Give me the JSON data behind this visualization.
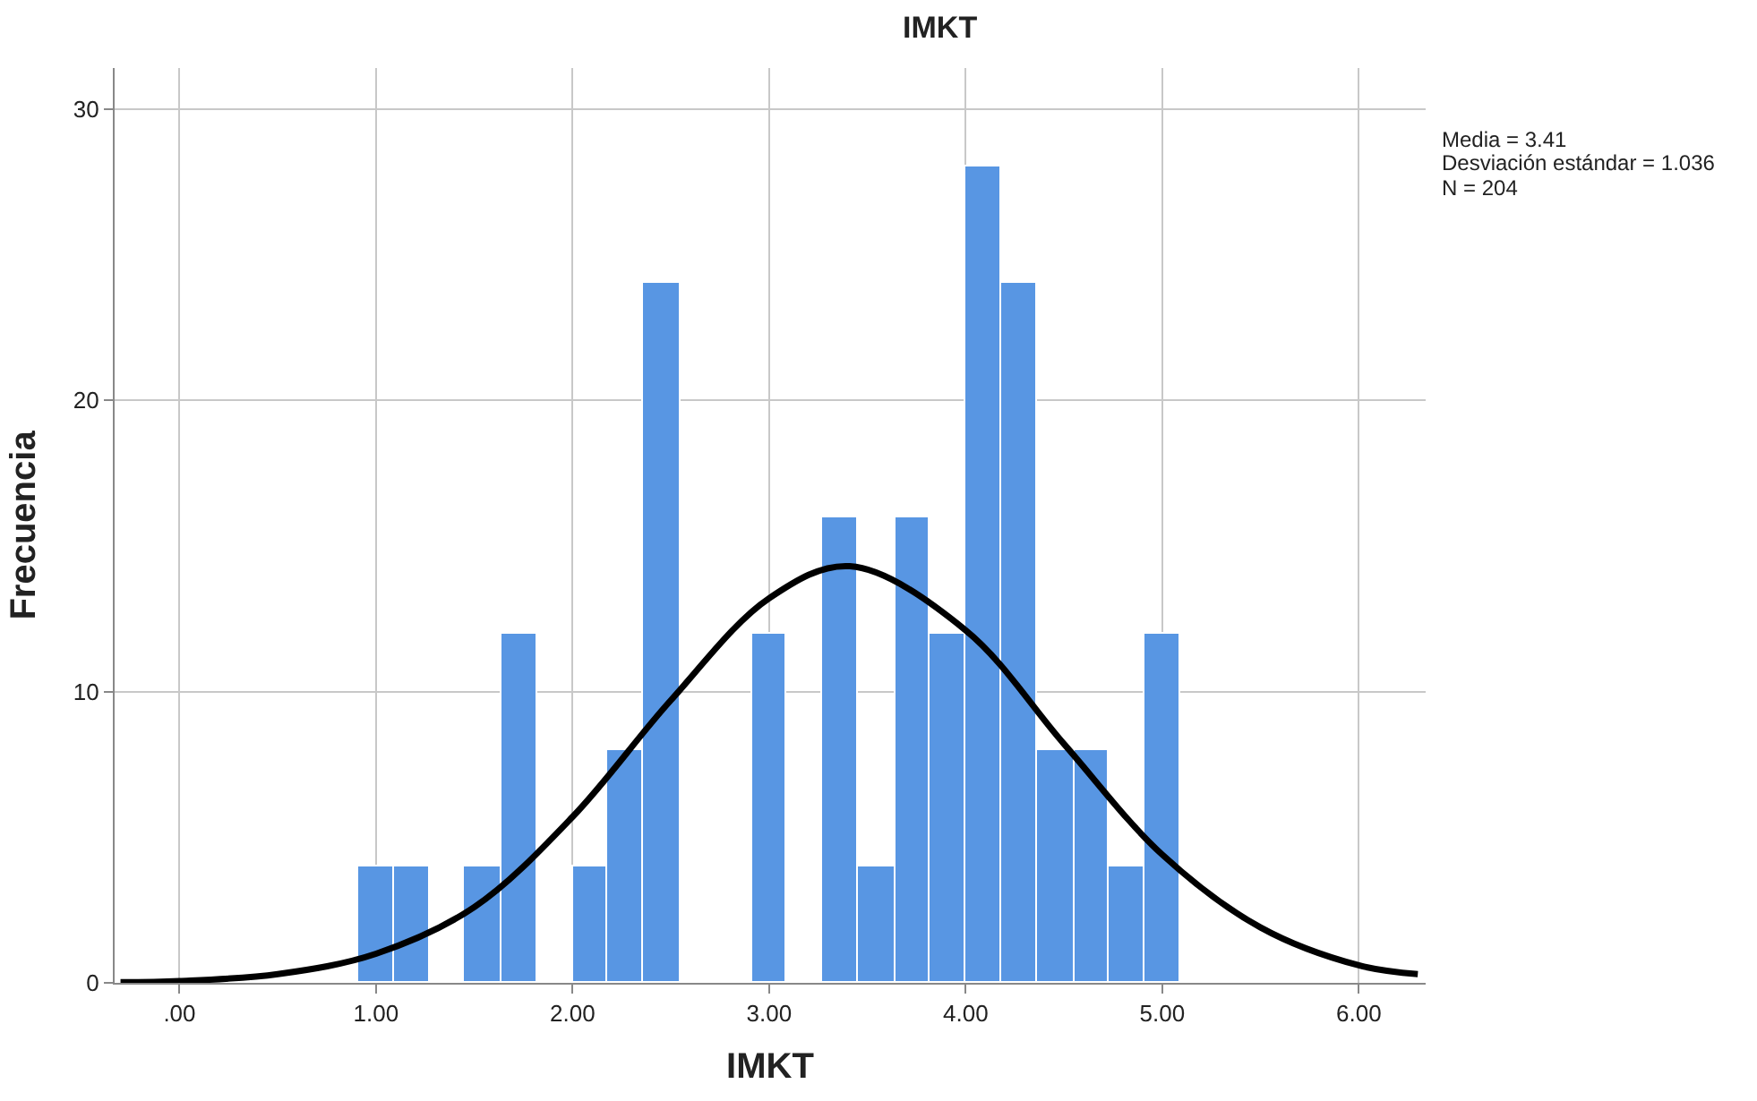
{
  "chart_data": {
    "type": "histogram",
    "title": "IMKT",
    "xlabel": "IMKT",
    "ylabel": "Frecuencia",
    "bins": [
      0.91,
      1.09,
      1.27,
      1.45,
      1.64,
      1.82,
      2.0,
      2.18,
      2.36,
      2.55,
      2.91,
      3.09,
      3.27,
      3.45,
      3.64,
      3.82,
      4.0,
      4.18,
      4.36,
      4.55,
      4.73,
      4.91,
      5.09
    ],
    "values": [
      4,
      4,
      0,
      4,
      12,
      0,
      4,
      8,
      24,
      0,
      12,
      0,
      16,
      4,
      16,
      12,
      28,
      24,
      8,
      8,
      4,
      12
    ],
    "color": "#5896e3",
    "series": [
      {
        "type": "line",
        "color": "#000000",
        "x": [
          -0.3,
          0.0,
          0.5,
          1.0,
          1.5,
          2.0,
          2.5,
          3.0,
          3.41,
          4.0,
          4.5,
          5.0,
          5.5,
          6.0,
          6.3
        ],
        "values": [
          0.02,
          0.06,
          0.3,
          1.0,
          2.6,
          5.7,
          9.7,
          13.2,
          14.3,
          12.1,
          8.2,
          4.4,
          1.9,
          0.6,
          0.3
        ]
      }
    ],
    "xlim": [
      -0.33,
      6.34
    ],
    "ylim": [
      0,
      31.4
    ],
    "xticks": [
      {
        "value": 0,
        "label": ".00"
      },
      {
        "value": 1,
        "label": "1.00"
      },
      {
        "value": 2,
        "label": "2.00"
      },
      {
        "value": 3,
        "label": "3.00"
      },
      {
        "value": 4,
        "label": "4.00"
      },
      {
        "value": 5,
        "label": "5.00"
      },
      {
        "value": 6,
        "label": "6.00"
      }
    ],
    "yticks": [
      0,
      10,
      20,
      30
    ],
    "grid": true,
    "annotations": [
      "Media = 3.41",
      "Desviación estándar = 1.036",
      "N = 204"
    ]
  }
}
